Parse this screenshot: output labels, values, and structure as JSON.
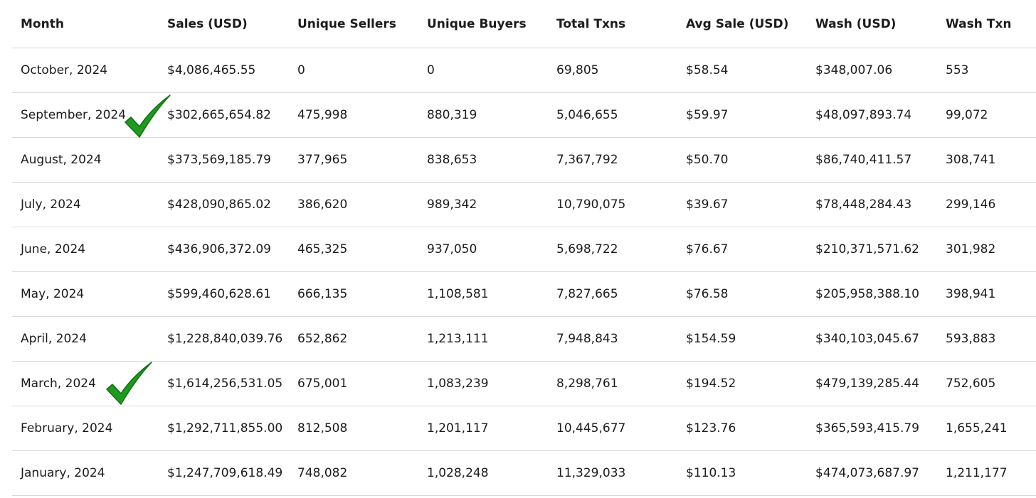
{
  "chart_data": {
    "type": "table",
    "columns": [
      "Month",
      "Sales (USD)",
      "Unique Sellers",
      "Unique Buyers",
      "Total Txns",
      "Avg Sale (USD)",
      "Wash (USD)",
      "Wash Txn"
    ],
    "rows": [
      [
        "October, 2024",
        "$4,086,465.55",
        "0",
        "0",
        "69,805",
        "$58.54",
        "$348,007.06",
        "553"
      ],
      [
        "September, 2024",
        "$302,665,654.82",
        "475,998",
        "880,319",
        "5,046,655",
        "$59.97",
        "$48,097,893.74",
        "99,072"
      ],
      [
        "August, 2024",
        "$373,569,185.79",
        "377,965",
        "838,653",
        "7,367,792",
        "$50.70",
        "$86,740,411.57",
        "308,741"
      ],
      [
        "July, 2024",
        "$428,090,865.02",
        "386,620",
        "989,342",
        "10,790,075",
        "$39.67",
        "$78,448,284.43",
        "299,146"
      ],
      [
        "June, 2024",
        "$436,906,372.09",
        "465,325",
        "937,050",
        "5,698,722",
        "$76.67",
        "$210,371,571.62",
        "301,982"
      ],
      [
        "May, 2024",
        "$599,460,628.61",
        "666,135",
        "1,108,581",
        "7,827,665",
        "$76.58",
        "$205,958,388.10",
        "398,941"
      ],
      [
        "April, 2024",
        "$1,228,840,039.76",
        "652,862",
        "1,213,111",
        "7,948,843",
        "$154.59",
        "$340,103,045.67",
        "593,883"
      ],
      [
        "March, 2024",
        "$1,614,256,531.05",
        "675,001",
        "1,083,239",
        "8,298,761",
        "$194.52",
        "$479,139,285.44",
        "752,605"
      ],
      [
        "February, 2024",
        "$1,292,711,855.00",
        "812,508",
        "1,201,117",
        "10,445,677",
        "$123.76",
        "$365,593,415.79",
        "1,655,241"
      ],
      [
        "January, 2024",
        "$1,247,709,618.49",
        "748,082",
        "1,028,248",
        "11,329,033",
        "$110.13",
        "$474,073,687.97",
        "1,211,177"
      ]
    ],
    "checkmarked_rows": [
      "September, 2024",
      "March, 2024"
    ]
  },
  "colors": {
    "checkmark": "#1f9a1f",
    "checkmark_dark": "#0f6e12",
    "divider": "#d9d9d9",
    "text": "#1c1c1c"
  },
  "icons": {
    "checkmark": "checkmark-icon"
  }
}
